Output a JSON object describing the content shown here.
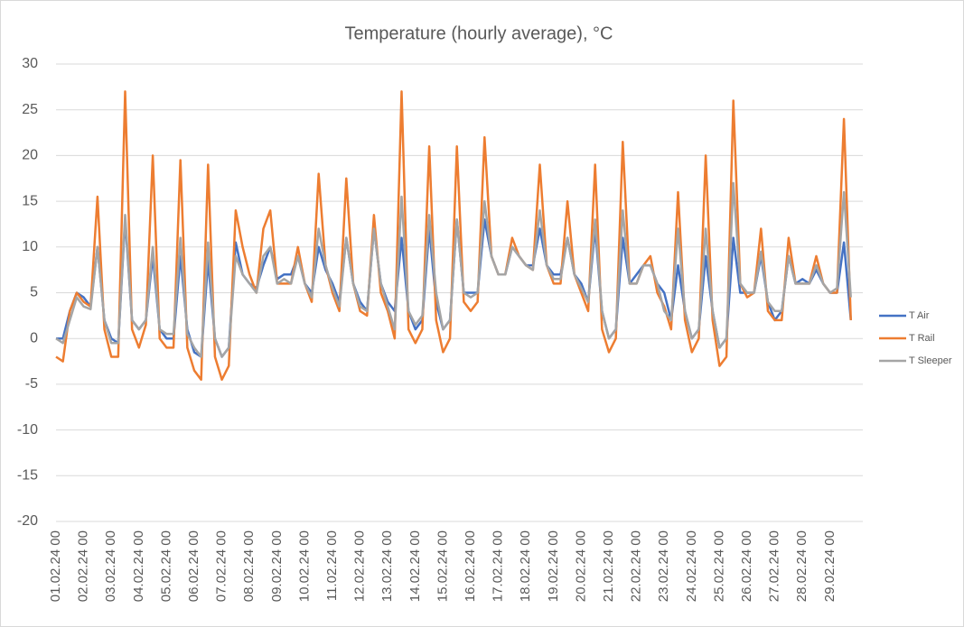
{
  "chart_data": {
    "type": "line",
    "title": "Temperature (hourly average), °C",
    "categories": [
      "01.02.24 00",
      null,
      null,
      null,
      "02.02.24 00",
      null,
      null,
      null,
      "03.02.24 00",
      null,
      null,
      null,
      "04.02.24 00",
      null,
      null,
      null,
      "05.02.24 00",
      null,
      null,
      null,
      "06.02.24 00",
      null,
      null,
      null,
      "07.02.24 00",
      null,
      null,
      null,
      "08.02.24 00",
      null,
      null,
      null,
      "09.02.24 00",
      null,
      null,
      null,
      "10.02.24 00",
      null,
      null,
      null,
      "11.02.24 00",
      null,
      null,
      null,
      "12.02.24 00",
      null,
      null,
      null,
      "13.02.24 00",
      null,
      null,
      null,
      "14.02.24 00",
      null,
      null,
      null,
      "15.02.24 00",
      null,
      null,
      null,
      "16.02.24 00",
      null,
      null,
      null,
      "17.02.24 00",
      null,
      null,
      null,
      "18.02.24 00",
      null,
      null,
      null,
      "19.02.24 00",
      null,
      null,
      null,
      "20.02.24 00",
      null,
      null,
      null,
      "21.02.24 00",
      null,
      null,
      null,
      "22.02.24 00",
      null,
      null,
      null,
      "23.02.24 00",
      null,
      null,
      null,
      "24.02.24 00",
      null,
      null,
      null,
      "25.02.24 00",
      null,
      null,
      null,
      "26.02.24 00",
      null,
      null,
      null,
      "27.02.24 00",
      null,
      null,
      null,
      "28.02.24 00",
      null,
      null,
      null,
      "29.02.24 00",
      null,
      null,
      null
    ],
    "series": [
      {
        "name": "T Air",
        "color": "#4472c4",
        "values": [
          0,
          0,
          3,
          5,
          4.5,
          3.5,
          10,
          2,
          0,
          -0.5,
          13,
          2,
          1,
          2,
          9,
          1,
          0,
          0,
          9,
          1,
          -1.5,
          -2,
          8.5,
          0,
          -2,
          -1,
          10.5,
          7,
          6,
          5.5,
          8,
          10,
          6.5,
          7,
          7,
          9,
          6,
          5,
          10,
          7.5,
          6,
          4,
          11,
          6,
          4,
          3,
          12,
          6,
          4,
          3,
          11,
          3,
          1,
          2,
          12,
          4,
          1,
          2,
          13,
          5,
          5,
          5,
          13,
          9,
          7,
          7,
          10,
          9,
          8,
          8,
          12,
          8,
          7,
          7,
          11,
          7,
          6,
          4,
          12,
          3,
          0,
          1,
          11,
          6,
          7,
          8,
          8,
          6,
          5,
          2,
          8,
          3,
          0,
          1,
          9,
          3,
          -1,
          0,
          11,
          5,
          5,
          5,
          9,
          4,
          2,
          3,
          9,
          6,
          6.5,
          6,
          7.5,
          6,
          5,
          5,
          10.5,
          2
        ]
      },
      {
        "name": "T Rail",
        "color": "#ed7d31",
        "values": [
          -2,
          -2.5,
          3,
          5,
          4,
          3.5,
          15.5,
          1,
          -2,
          -2,
          27,
          1,
          -1,
          1.5,
          20,
          0,
          -1,
          -1,
          19.5,
          -1,
          -3.5,
          -4.5,
          19,
          -2,
          -4.5,
          -3,
          14,
          10,
          7,
          5,
          12,
          14,
          6,
          6,
          6,
          10,
          6,
          4,
          18,
          8,
          5,
          3,
          17.5,
          6,
          3,
          2.5,
          13.5,
          5,
          3,
          0,
          27,
          1,
          -0.5,
          1,
          21,
          2,
          -1.5,
          0,
          21,
          4,
          3,
          4,
          22,
          9,
          7,
          7,
          11,
          9,
          8,
          7.5,
          19,
          8,
          6,
          6,
          15,
          7,
          5,
          3,
          19,
          1,
          -1.5,
          0,
          21.5,
          6,
          6,
          8,
          9,
          5,
          3.5,
          1,
          16,
          2,
          -1.5,
          0,
          20,
          2,
          -3,
          -2,
          26,
          6,
          4.5,
          5,
          12,
          3,
          2,
          2,
          11,
          6,
          6,
          6,
          9,
          6,
          5,
          5,
          24,
          2
        ]
      },
      {
        "name": "T Sleeper",
        "color": "#a5a5a5",
        "values": [
          0,
          -0.5,
          2,
          4.5,
          3.5,
          3.2,
          10,
          2,
          -0.5,
          -0.5,
          13.5,
          2,
          1,
          2,
          10,
          1,
          0.5,
          0.5,
          11,
          0.5,
          -1,
          -2,
          10.5,
          0,
          -2,
          -1,
          9,
          7,
          6,
          5,
          9,
          10,
          6,
          6.5,
          6,
          9,
          6,
          4.5,
          12,
          8,
          5.5,
          3.5,
          11,
          6,
          3.5,
          3,
          12,
          6,
          3.5,
          1,
          15.5,
          3,
          1.5,
          2.5,
          13.5,
          5,
          1,
          2,
          13,
          5,
          4.5,
          5,
          15,
          9,
          7,
          7,
          10,
          9,
          8,
          7.5,
          14,
          8,
          6.5,
          6.5,
          11,
          7,
          5.5,
          4,
          13,
          3,
          0,
          1,
          14,
          6,
          6,
          8,
          8,
          6,
          3,
          2,
          12,
          3,
          0,
          1,
          12,
          3,
          -1,
          0,
          17,
          6,
          5,
          5,
          9.5,
          4,
          3,
          3,
          9,
          6,
          6,
          6,
          8,
          6,
          5,
          5.5,
          16,
          4.5
        ]
      }
    ],
    "ylim": [
      -20,
      30
    ],
    "yticks": [
      -20,
      -15,
      -10,
      -5,
      0,
      5,
      10,
      15,
      20,
      25,
      30
    ],
    "grid": true,
    "legend": "right"
  }
}
